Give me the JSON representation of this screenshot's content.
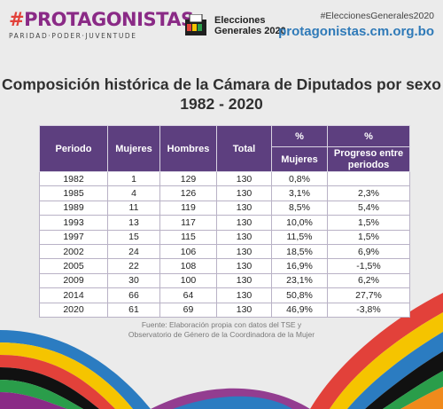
{
  "header": {
    "brand_hash": "#",
    "brand_name": "PROTAGONISTAS",
    "brand_tagline": "PARIDAD·PODER·JUVENTUDE",
    "elections_line1": "Elecciones",
    "elections_line2": "Generales 2020",
    "ballot_label": "2020",
    "hashtag": "#EleccionesGenerales2020",
    "site": "protagonistas.cm.org.bo"
  },
  "title": {
    "line1": "Composición histórica de la Cámara de Diputados por sexo",
    "line2": "1982 - 2020"
  },
  "table": {
    "headers": {
      "periodo": "Periodo",
      "mujeres": "Mujeres",
      "hombres": "Hombres",
      "total": "Total",
      "pct1": "%",
      "pct2": "%",
      "pct_mujeres": "Mujeres",
      "progreso": "Progreso entre periodos"
    },
    "rows": [
      [
        "1982",
        "1",
        "129",
        "130",
        "0,8%",
        ""
      ],
      [
        "1985",
        "4",
        "126",
        "130",
        "3,1%",
        "2,3%"
      ],
      [
        "1989",
        "11",
        "119",
        "130",
        "8,5%",
        "5,4%"
      ],
      [
        "1993",
        "13",
        "117",
        "130",
        "10,0%",
        "1,5%"
      ],
      [
        "1997",
        "15",
        "115",
        "130",
        "11,5%",
        "1,5%"
      ],
      [
        "2002",
        "24",
        "106",
        "130",
        "18,5%",
        "6,9%"
      ],
      [
        "2005",
        "22",
        "108",
        "130",
        "16,9%",
        "-1,5%"
      ],
      [
        "2009",
        "30",
        "100",
        "130",
        "23,1%",
        "6,2%"
      ],
      [
        "2014",
        "66",
        "64",
        "130",
        "50,8%",
        "27,7%"
      ],
      [
        "2020",
        "61",
        "69",
        "130",
        "46,9%",
        "-3,8%"
      ]
    ]
  },
  "source": {
    "line1": "Fuente: Elaboración propia con datos del TSE y",
    "line2": "Observatorio de Género de la Coordinadora de la Mujer"
  },
  "colors": {
    "header_bg": "#5d3f7f",
    "brand": "#8a2a86",
    "site": "#2f7ab8",
    "stripes": [
      "#2b7cc1",
      "#f5c400",
      "#e2413a",
      "#8a2a86",
      "#2a9d4a",
      "#111111",
      "#f08a1c",
      "#ffffff"
    ]
  }
}
